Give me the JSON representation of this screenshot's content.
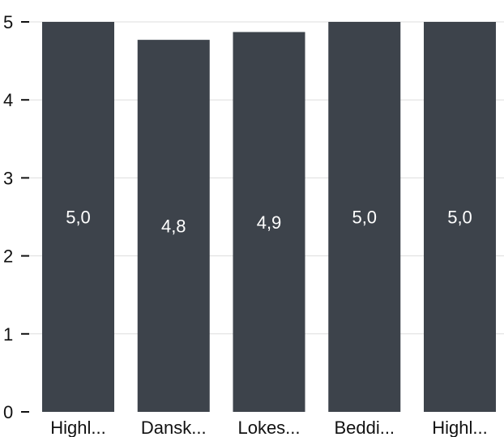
{
  "chart_data": {
    "type": "bar",
    "categories": [
      "Highl...",
      "Dansk...",
      "Lokes...",
      "Beddi...",
      "Highl..."
    ],
    "values": [
      5.0,
      4.77,
      4.87,
      5.0,
      5.0
    ],
    "value_labels": [
      "5,0",
      "4,8",
      "4,9",
      "5,0",
      "5,0"
    ],
    "y_ticks": [
      "0",
      "1",
      "2",
      "3",
      "4",
      "5"
    ],
    "ylim": [
      0,
      5
    ],
    "grid": true,
    "title": "",
    "xlabel": "",
    "ylabel": ""
  },
  "colors": {
    "bar": "#3d434b",
    "grid": "#dddddd",
    "axis_text": "#111111",
    "value_text": "#ffffff"
  }
}
